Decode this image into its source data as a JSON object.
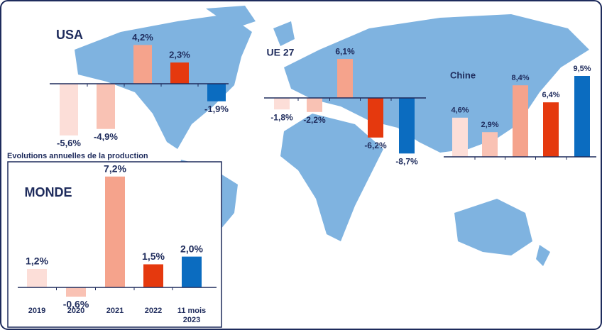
{
  "chart_data": [
    {
      "type": "bar",
      "title": "USA",
      "values": [
        -5.6,
        -4.9,
        4.2,
        2.3,
        -1.9
      ],
      "value_labels": [
        "-5,6%",
        "-4,9%",
        "4,2%",
        "2,3%",
        "-1,9%"
      ],
      "colors": [
        "#fcded8",
        "#f9c2b4",
        "#f5a38c",
        "#e5390e",
        "#0b6cc0"
      ]
    },
    {
      "type": "bar",
      "title": "UE 27",
      "values": [
        -1.8,
        -2.2,
        6.1,
        -6.2,
        -8.7
      ],
      "value_labels": [
        "-1,8%",
        "-2,2%",
        "6,1%",
        "-6,2%",
        "-8,7%"
      ],
      "colors": [
        "#fcded8",
        "#f9c2b4",
        "#f5a38c",
        "#e5390e",
        "#0b6cc0"
      ]
    },
    {
      "type": "bar",
      "title": "Chine",
      "values": [
        4.6,
        2.9,
        8.4,
        6.4,
        9.5
      ],
      "value_labels": [
        "4,6%",
        "2,9%",
        "8,4%",
        "6,4%",
        "9,5%"
      ],
      "colors": [
        "#fcded8",
        "#f9c2b4",
        "#f5a38c",
        "#e5390e",
        "#0b6cc0"
      ]
    },
    {
      "type": "bar",
      "title": "MONDE",
      "subtitle": "Evolutions annuelles de la production",
      "categories": [
        "2019",
        "2020",
        "2021",
        "2022",
        "11 mois 2023"
      ],
      "values": [
        1.2,
        -0.6,
        7.2,
        1.5,
        2.0
      ],
      "value_labels": [
        "1,2%",
        "-0,6%",
        "7,2%",
        "1,5%",
        "2,0%"
      ],
      "colors": [
        "#fcded8",
        "#f9c2b4",
        "#f5a38c",
        "#e5390e",
        "#0b6cc0"
      ]
    }
  ]
}
